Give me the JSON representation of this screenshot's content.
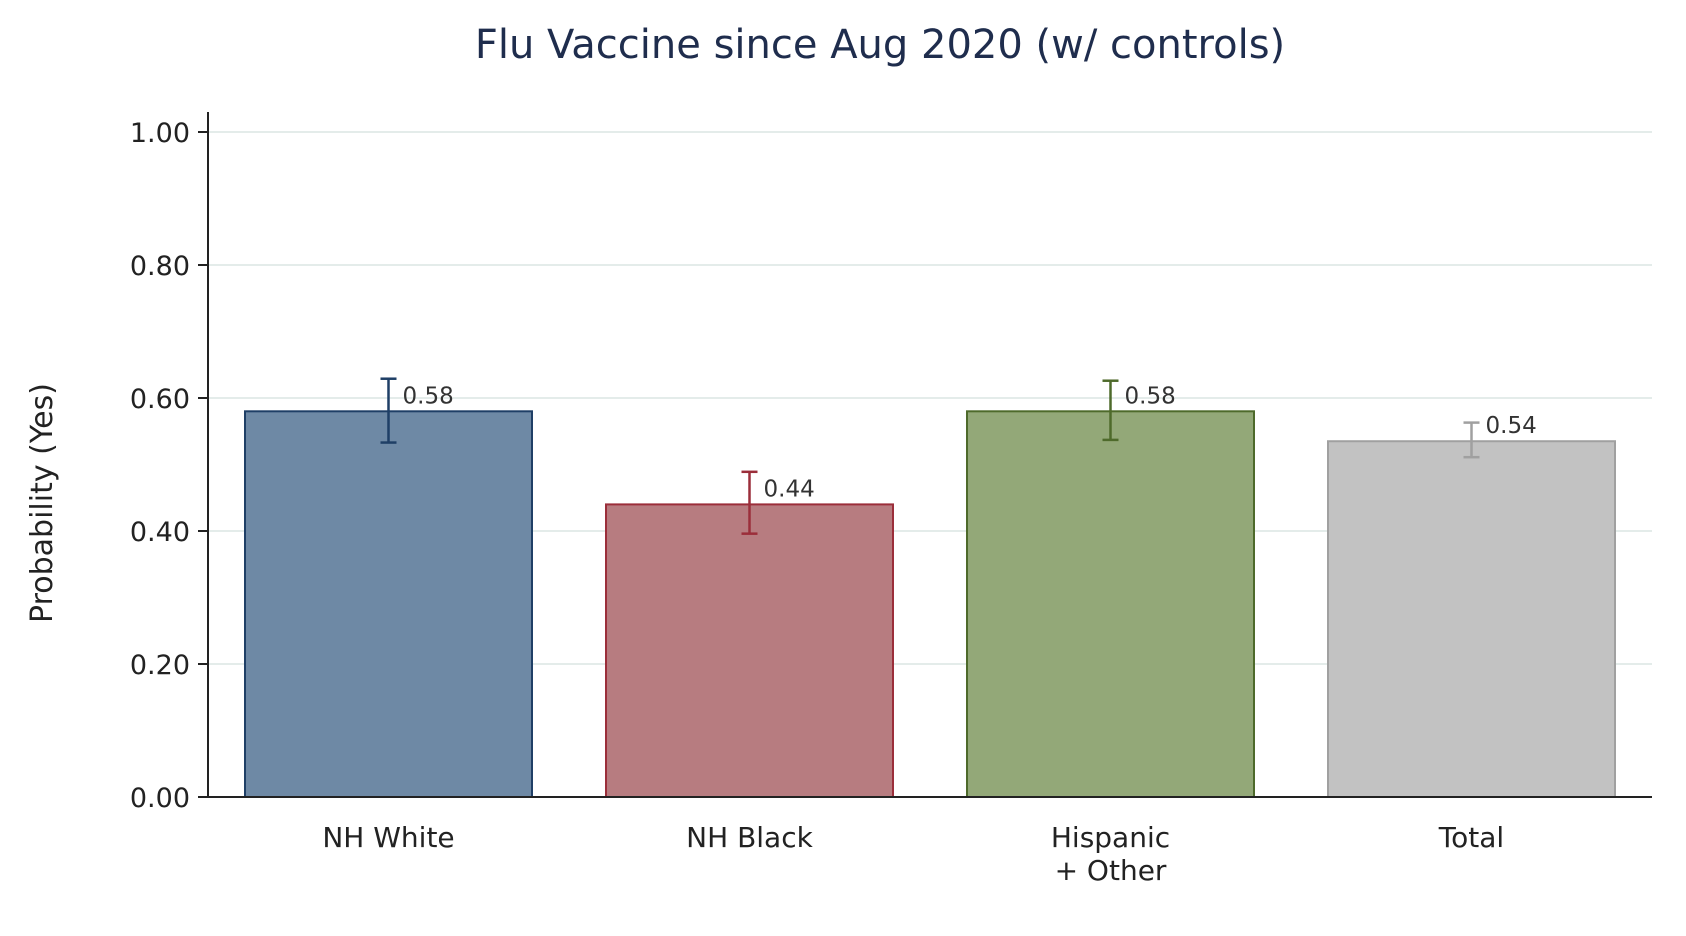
{
  "chart_data": {
    "type": "bar",
    "title": "Flu Vaccine since Aug 2020 (w/ controls)",
    "xlabel": "",
    "ylabel": "Probability (Yes)",
    "ylim": [
      0,
      1
    ],
    "yticks": [
      "0.00",
      "0.20",
      "0.40",
      "0.60",
      "0.80",
      "1.00"
    ],
    "ytick_values": [
      0,
      0.2,
      0.4,
      0.6,
      0.8,
      1.0
    ],
    "grid": true,
    "categories": [
      [
        "NH White"
      ],
      [
        "NH Black"
      ],
      [
        "Hispanic",
        "+ Other"
      ],
      [
        "Total"
      ]
    ],
    "values": [
      0.58,
      0.44,
      0.58,
      0.535
    ],
    "value_labels": [
      "0.58",
      "0.44",
      "0.58",
      "0.54"
    ],
    "error_low": [
      0.533,
      0.396,
      0.537,
      0.511
    ],
    "error_high": [
      0.629,
      0.489,
      0.626,
      0.563
    ],
    "colors": {
      "fill": [
        "#6e89a5",
        "#b77c80",
        "#93a878",
        "#c2c2c2"
      ],
      "stroke": [
        "#1f3f66",
        "#9b2e3a",
        "#4e6a2b",
        "#a0a0a0"
      ],
      "gridline": "#e4ecea",
      "axis": "#222222"
    }
  }
}
